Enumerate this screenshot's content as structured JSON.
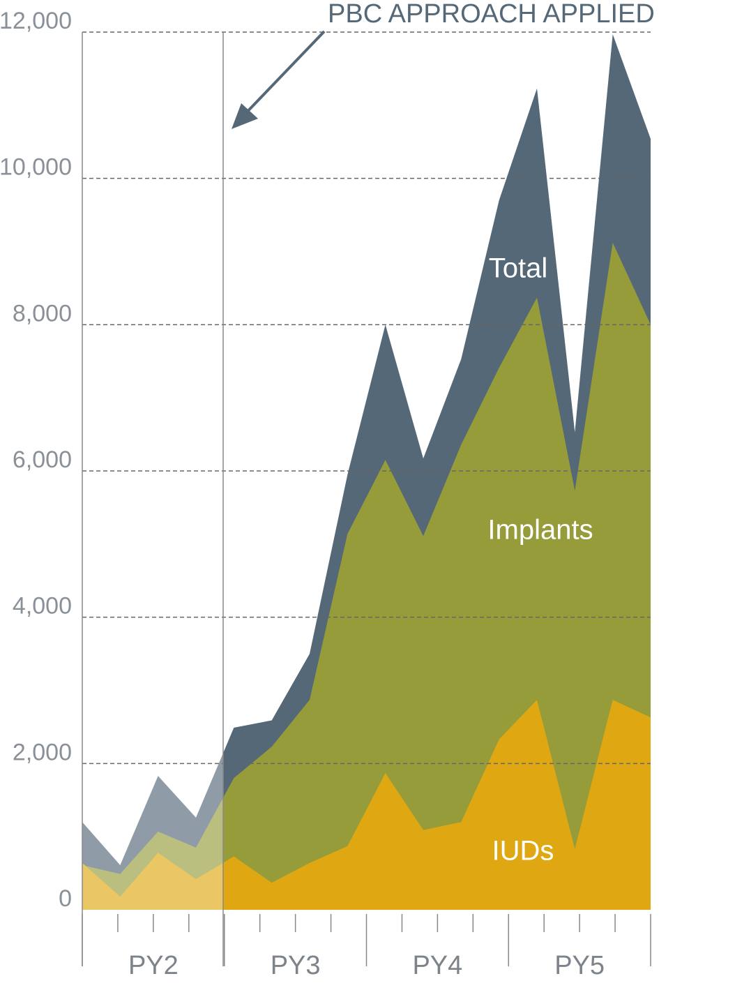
{
  "chart_data": {
    "type": "area",
    "annotation": "PBC APPROACH APPLIED",
    "categories": [
      null,
      null,
      null,
      null,
      null,
      null,
      null,
      null,
      null,
      null,
      null,
      null,
      null,
      null,
      null,
      null
    ],
    "groups": [
      "PY2",
      "PY3",
      "PY4",
      "PY5"
    ],
    "series": [
      {
        "name": "Total",
        "color": "#546878",
        "values": [
          1200,
          610,
          1830,
          1260,
          2490,
          2590,
          3500,
          5950,
          8000,
          6170,
          7530,
          9700,
          11230,
          6530,
          11970,
          10540
        ]
      },
      {
        "name": "Implants",
        "color": "#969c3a",
        "values": [
          610,
          490,
          1070,
          850,
          1800,
          2230,
          2870,
          5140,
          6150,
          5110,
          6360,
          7410,
          8370,
          5730,
          9120,
          8000
        ]
      },
      {
        "name": "IUDs",
        "color": "#dfa812",
        "values": [
          640,
          180,
          780,
          420,
          730,
          370,
          640,
          870,
          1870,
          1090,
          1200,
          2330,
          2870,
          830,
          2870,
          2630
        ]
      }
    ],
    "ylim": [
      0,
      12000
    ],
    "yticks": [
      {
        "value": 0,
        "label": "0"
      },
      {
        "value": 2000,
        "label": "2,000"
      },
      {
        "value": 4000,
        "label": "4,000"
      },
      {
        "value": 6000,
        "label": "6,000"
      },
      {
        "value": 8000,
        "label": "8,000"
      },
      {
        "value": 10000,
        "label": "10,000"
      },
      {
        "value": 12000,
        "label": "12,000"
      }
    ],
    "grid": true
  }
}
